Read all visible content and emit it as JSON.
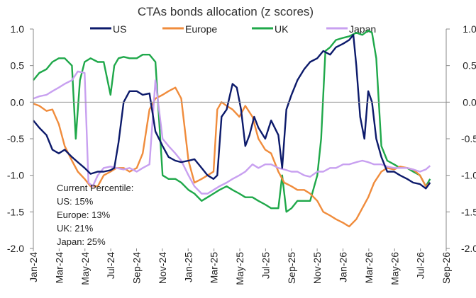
{
  "chart_data": {
    "type": "line",
    "title": "CTAs bonds allocation (z scores)",
    "ylim": [
      -2.0,
      1.0
    ],
    "y_ticks": [
      "1.0",
      "0.5",
      "0.0",
      "-0.5",
      "-1.0",
      "-1.5",
      "-2.0"
    ],
    "y_tick_values": [
      1.0,
      0.5,
      0.0,
      -0.5,
      -1.0,
      -1.5,
      -2.0
    ],
    "x_ticks": [
      "Jan-24",
      "Mar-24",
      "May-24",
      "Jul-24",
      "Sep-24",
      "Nov-24",
      "Jan-25",
      "Mar-25",
      "May-25",
      "Jul-25",
      "Sep-25",
      "Nov-25",
      "Jan-26",
      "Mar-26",
      "May-26",
      "Jul-26",
      "Sep-26"
    ],
    "x_start": "2024-01-01",
    "x_end": "2026-09-01",
    "grid": false,
    "legend_position": "top",
    "series": [
      {
        "name": "US",
        "color": "#0c1a6b",
        "points": [
          [
            "2024-01-01",
            -0.25
          ],
          [
            "2024-01-15",
            -0.35
          ],
          [
            "2024-02-01",
            -0.45
          ],
          [
            "2024-02-15",
            -0.65
          ],
          [
            "2024-03-01",
            -0.7
          ],
          [
            "2024-03-15",
            -0.65
          ],
          [
            "2024-04-01",
            -0.75
          ],
          [
            "2024-04-15",
            -0.82
          ],
          [
            "2024-05-01",
            -0.9
          ],
          [
            "2024-05-15",
            -0.98
          ],
          [
            "2024-06-01",
            -0.95
          ],
          [
            "2024-06-15",
            -0.95
          ],
          [
            "2024-07-01",
            -0.93
          ],
          [
            "2024-07-10",
            -0.9
          ],
          [
            "2024-07-20",
            -0.55
          ],
          [
            "2024-08-01",
            0.0
          ],
          [
            "2024-08-15",
            0.15
          ],
          [
            "2024-09-01",
            0.15
          ],
          [
            "2024-09-15",
            0.1
          ],
          [
            "2024-10-01",
            0.12
          ],
          [
            "2024-10-15",
            -0.4
          ],
          [
            "2024-11-01",
            -0.6
          ],
          [
            "2024-11-15",
            -0.75
          ],
          [
            "2024-12-01",
            -0.8
          ],
          [
            "2024-12-15",
            -0.82
          ],
          [
            "2025-01-01",
            -0.8
          ],
          [
            "2025-01-15",
            -0.78
          ],
          [
            "2025-02-01",
            -0.9
          ],
          [
            "2025-02-15",
            -1.0
          ],
          [
            "2025-03-01",
            -1.05
          ],
          [
            "2025-03-10",
            -1.0
          ],
          [
            "2025-03-20",
            -0.2
          ],
          [
            "2025-04-01",
            -0.1
          ],
          [
            "2025-04-15",
            0.25
          ],
          [
            "2025-04-25",
            0.2
          ],
          [
            "2025-05-05",
            -0.1
          ],
          [
            "2025-05-15",
            -0.6
          ],
          [
            "2025-05-25",
            -0.45
          ],
          [
            "2025-06-05",
            -0.2
          ],
          [
            "2025-06-15",
            -0.35
          ],
          [
            "2025-07-01",
            -0.5
          ],
          [
            "2025-07-15",
            -0.25
          ],
          [
            "2025-08-01",
            -0.45
          ],
          [
            "2025-08-10",
            -0.9
          ],
          [
            "2025-08-20",
            -0.1
          ],
          [
            "2025-09-01",
            0.1
          ],
          [
            "2025-09-15",
            0.3
          ],
          [
            "2025-10-01",
            0.45
          ],
          [
            "2025-10-15",
            0.55
          ],
          [
            "2025-11-01",
            0.6
          ],
          [
            "2025-11-15",
            0.7
          ],
          [
            "2025-12-01",
            0.65
          ],
          [
            "2025-12-15",
            0.75
          ],
          [
            "2026-01-01",
            0.8
          ],
          [
            "2026-01-15",
            0.85
          ],
          [
            "2026-01-25",
            0.92
          ],
          [
            "2026-02-01",
            0.5
          ],
          [
            "2026-02-10",
            -0.2
          ],
          [
            "2026-02-20",
            -0.5
          ],
          [
            "2026-03-01",
            0.15
          ],
          [
            "2026-03-10",
            0.0
          ],
          [
            "2026-03-20",
            -0.5
          ],
          [
            "2026-04-01",
            -0.75
          ],
          [
            "2026-04-15",
            -0.95
          ],
          [
            "2026-05-01",
            -0.95
          ],
          [
            "2026-05-15",
            -1.0
          ],
          [
            "2026-06-01",
            -1.05
          ],
          [
            "2026-06-15",
            -1.1
          ],
          [
            "2026-07-01",
            -1.12
          ],
          [
            "2026-07-15",
            -1.18
          ],
          [
            "2026-07-25",
            -1.1
          ]
        ]
      },
      {
        "name": "Europe",
        "color": "#f08c3c",
        "points": [
          [
            "2024-01-01",
            -0.02
          ],
          [
            "2024-01-15",
            -0.05
          ],
          [
            "2024-02-01",
            -0.12
          ],
          [
            "2024-02-15",
            -0.1
          ],
          [
            "2024-03-01",
            -0.3
          ],
          [
            "2024-03-15",
            -0.6
          ],
          [
            "2024-04-01",
            -0.8
          ],
          [
            "2024-04-15",
            -0.95
          ],
          [
            "2024-05-01",
            -1.05
          ],
          [
            "2024-05-15",
            -1.15
          ],
          [
            "2024-06-01",
            -1.15
          ],
          [
            "2024-06-15",
            -1.0
          ],
          [
            "2024-07-01",
            -0.95
          ],
          [
            "2024-07-15",
            -0.9
          ],
          [
            "2024-08-01",
            -0.9
          ],
          [
            "2024-08-15",
            -0.95
          ],
          [
            "2024-09-01",
            -0.9
          ],
          [
            "2024-09-15",
            -0.7
          ],
          [
            "2024-10-01",
            -0.1
          ],
          [
            "2024-10-15",
            0.05
          ],
          [
            "2024-11-01",
            0.1
          ],
          [
            "2024-11-15",
            0.15
          ],
          [
            "2024-12-01",
            0.2
          ],
          [
            "2024-12-15",
            0.05
          ],
          [
            "2025-01-01",
            -0.8
          ],
          [
            "2025-01-15",
            -1.1
          ],
          [
            "2025-02-01",
            -1.05
          ],
          [
            "2025-02-15",
            -1.0
          ],
          [
            "2025-03-01",
            -0.95
          ],
          [
            "2025-03-10",
            -0.1
          ],
          [
            "2025-03-20",
            0.0
          ],
          [
            "2025-04-01",
            -0.05
          ],
          [
            "2025-04-15",
            -0.1
          ],
          [
            "2025-05-01",
            -0.2
          ],
          [
            "2025-05-15",
            -0.05
          ],
          [
            "2025-06-01",
            -0.2
          ],
          [
            "2025-06-15",
            -0.5
          ],
          [
            "2025-07-01",
            -0.65
          ],
          [
            "2025-07-15",
            -0.7
          ],
          [
            "2025-08-01",
            -0.95
          ],
          [
            "2025-08-15",
            -1.1
          ],
          [
            "2025-09-01",
            -1.15
          ],
          [
            "2025-09-15",
            -1.2
          ],
          [
            "2025-10-01",
            -1.2
          ],
          [
            "2025-10-15",
            -1.25
          ],
          [
            "2025-11-01",
            -1.35
          ],
          [
            "2025-11-15",
            -1.5
          ],
          [
            "2025-12-01",
            -1.55
          ],
          [
            "2025-12-15",
            -1.6
          ],
          [
            "2026-01-01",
            -1.65
          ],
          [
            "2026-01-15",
            -1.7
          ],
          [
            "2026-02-01",
            -1.6
          ],
          [
            "2026-02-15",
            -1.45
          ],
          [
            "2026-03-01",
            -1.3
          ],
          [
            "2026-03-15",
            -1.1
          ],
          [
            "2026-04-01",
            -0.95
          ],
          [
            "2026-04-15",
            -0.9
          ],
          [
            "2026-05-01",
            -0.92
          ],
          [
            "2026-05-15",
            -0.88
          ],
          [
            "2026-06-01",
            -0.9
          ],
          [
            "2026-06-15",
            -0.92
          ],
          [
            "2026-07-01",
            -1.0
          ],
          [
            "2026-07-15",
            -1.15
          ],
          [
            "2026-07-25",
            -1.1
          ]
        ]
      },
      {
        "name": "UK",
        "color": "#1fa84a",
        "points": [
          [
            "2024-01-01",
            0.3
          ],
          [
            "2024-01-15",
            0.4
          ],
          [
            "2024-02-01",
            0.45
          ],
          [
            "2024-02-15",
            0.55
          ],
          [
            "2024-03-01",
            0.6
          ],
          [
            "2024-03-15",
            0.6
          ],
          [
            "2024-04-01",
            0.5
          ],
          [
            "2024-04-10",
            -0.5
          ],
          [
            "2024-04-20",
            0.3
          ],
          [
            "2024-05-01",
            0.55
          ],
          [
            "2024-05-15",
            0.6
          ],
          [
            "2024-06-01",
            0.55
          ],
          [
            "2024-06-15",
            0.55
          ],
          [
            "2024-07-01",
            0.1
          ],
          [
            "2024-07-10",
            0.5
          ],
          [
            "2024-07-20",
            0.6
          ],
          [
            "2024-08-01",
            0.62
          ],
          [
            "2024-08-15",
            0.6
          ],
          [
            "2024-09-01",
            0.6
          ],
          [
            "2024-09-15",
            0.65
          ],
          [
            "2024-10-01",
            0.65
          ],
          [
            "2024-10-15",
            0.55
          ],
          [
            "2024-11-01",
            -1.0
          ],
          [
            "2024-11-15",
            -1.05
          ],
          [
            "2024-12-01",
            -1.05
          ],
          [
            "2024-12-15",
            -1.1
          ],
          [
            "2025-01-01",
            -1.2
          ],
          [
            "2025-01-15",
            -1.25
          ],
          [
            "2025-02-01",
            -1.35
          ],
          [
            "2025-02-15",
            -1.3
          ],
          [
            "2025-03-01",
            -1.25
          ],
          [
            "2025-03-15",
            -1.2
          ],
          [
            "2025-04-01",
            -1.15
          ],
          [
            "2025-04-15",
            -1.2
          ],
          [
            "2025-05-01",
            -1.25
          ],
          [
            "2025-05-15",
            -1.3
          ],
          [
            "2025-06-01",
            -1.3
          ],
          [
            "2025-06-15",
            -1.35
          ],
          [
            "2025-07-01",
            -1.4
          ],
          [
            "2025-07-15",
            -1.45
          ],
          [
            "2025-08-01",
            -1.45
          ],
          [
            "2025-08-10",
            -1.0
          ],
          [
            "2025-08-20",
            -1.5
          ],
          [
            "2025-09-01",
            -1.45
          ],
          [
            "2025-09-15",
            -1.35
          ],
          [
            "2025-10-01",
            -1.35
          ],
          [
            "2025-10-15",
            -1.35
          ],
          [
            "2025-11-01",
            -1.0
          ],
          [
            "2025-11-10",
            -0.5
          ],
          [
            "2025-11-20",
            0.7
          ],
          [
            "2025-12-01",
            0.75
          ],
          [
            "2025-12-15",
            0.85
          ],
          [
            "2026-01-01",
            0.88
          ],
          [
            "2026-01-15",
            0.9
          ],
          [
            "2026-02-01",
            0.95
          ],
          [
            "2026-02-15",
            0.92
          ],
          [
            "2026-03-01",
            0.98
          ],
          [
            "2026-03-10",
            0.95
          ],
          [
            "2026-03-20",
            0.6
          ],
          [
            "2026-04-01",
            -0.6
          ],
          [
            "2026-04-15",
            -0.8
          ],
          [
            "2026-05-01",
            -0.85
          ],
          [
            "2026-05-15",
            -0.9
          ],
          [
            "2026-06-01",
            -0.9
          ],
          [
            "2026-06-15",
            -0.95
          ],
          [
            "2026-07-01",
            -1.0
          ],
          [
            "2026-07-15",
            -1.15
          ],
          [
            "2026-07-25",
            -1.05
          ]
        ]
      },
      {
        "name": "Japan",
        "color": "#c8a0f0",
        "points": [
          [
            "2024-01-01",
            0.05
          ],
          [
            "2024-01-15",
            0.08
          ],
          [
            "2024-02-01",
            0.1
          ],
          [
            "2024-02-15",
            0.15
          ],
          [
            "2024-03-01",
            0.2
          ],
          [
            "2024-03-15",
            0.25
          ],
          [
            "2024-04-01",
            0.3
          ],
          [
            "2024-04-15",
            0.42
          ],
          [
            "2024-05-01",
            0.4
          ],
          [
            "2024-05-10",
            -1.1
          ],
          [
            "2024-05-20",
            -1.15
          ],
          [
            "2024-06-01",
            -1.0
          ],
          [
            "2024-06-15",
            -0.9
          ],
          [
            "2024-07-01",
            -0.88
          ],
          [
            "2024-07-15",
            -0.9
          ],
          [
            "2024-08-01",
            -0.92
          ],
          [
            "2024-08-15",
            -0.9
          ],
          [
            "2024-09-01",
            -0.95
          ],
          [
            "2024-09-15",
            -0.9
          ],
          [
            "2024-10-01",
            -0.85
          ],
          [
            "2024-10-15",
            0.3
          ],
          [
            "2024-11-01",
            -0.5
          ],
          [
            "2024-11-15",
            -0.6
          ],
          [
            "2024-12-01",
            -0.7
          ],
          [
            "2024-12-15",
            -0.8
          ],
          [
            "2025-01-01",
            -1.0
          ],
          [
            "2025-01-15",
            -1.15
          ],
          [
            "2025-02-01",
            -1.25
          ],
          [
            "2025-02-15",
            -1.25
          ],
          [
            "2025-03-01",
            -1.2
          ],
          [
            "2025-03-15",
            -1.15
          ],
          [
            "2025-04-01",
            -1.1
          ],
          [
            "2025-04-15",
            -1.05
          ],
          [
            "2025-05-01",
            -1.0
          ],
          [
            "2025-05-15",
            -0.95
          ],
          [
            "2025-06-01",
            -0.85
          ],
          [
            "2025-06-15",
            -0.9
          ],
          [
            "2025-07-01",
            -0.85
          ],
          [
            "2025-07-15",
            -0.85
          ],
          [
            "2025-08-01",
            -0.9
          ],
          [
            "2025-08-15",
            -0.92
          ],
          [
            "2025-09-01",
            -0.95
          ],
          [
            "2025-09-15",
            -0.95
          ],
          [
            "2025-10-01",
            -1.0
          ],
          [
            "2025-10-15",
            -1.02
          ],
          [
            "2025-11-01",
            -0.95
          ],
          [
            "2025-11-15",
            -0.95
          ],
          [
            "2025-12-01",
            -0.9
          ],
          [
            "2025-12-15",
            -0.9
          ],
          [
            "2026-01-01",
            -0.85
          ],
          [
            "2026-01-15",
            -0.85
          ],
          [
            "2026-02-01",
            -0.82
          ],
          [
            "2026-02-15",
            -0.8
          ],
          [
            "2026-03-01",
            -0.82
          ],
          [
            "2026-03-15",
            -0.85
          ],
          [
            "2026-04-01",
            -0.85
          ],
          [
            "2026-04-15",
            -0.88
          ],
          [
            "2026-05-01",
            -0.9
          ],
          [
            "2026-05-15",
            -0.9
          ],
          [
            "2026-06-01",
            -0.9
          ],
          [
            "2026-06-15",
            -0.92
          ],
          [
            "2026-07-01",
            -0.95
          ],
          [
            "2026-07-15",
            -0.92
          ],
          [
            "2026-07-25",
            -0.87
          ]
        ]
      }
    ],
    "annotation": {
      "lines": [
        "Current Percentile:",
        "US: 15%",
        "Europe: 13%",
        "UK: 21%",
        "Japan: 25%"
      ]
    }
  }
}
